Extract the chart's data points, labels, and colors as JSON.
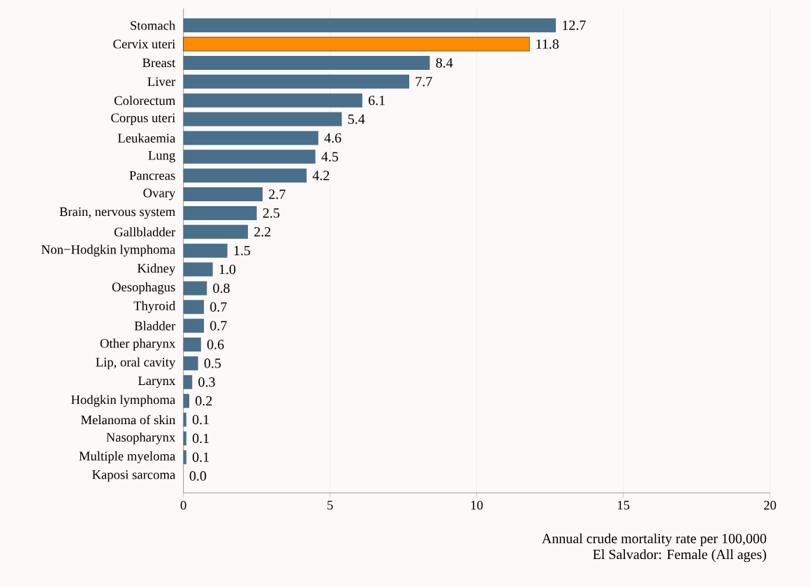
{
  "chart_data": {
    "type": "bar",
    "orientation": "horizontal",
    "categories": [
      "Stomach",
      "Cervix uteri",
      "Breast",
      "Liver",
      "Colorectum",
      "Corpus uteri",
      "Leukaemia",
      "Lung",
      "Pancreas",
      "Ovary",
      "Brain, nervous system",
      "Gallbladder",
      "Non−Hodgkin lymphoma",
      "Kidney",
      "Oesophagus",
      "Thyroid",
      "Bladder",
      "Other pharynx",
      "Lip, oral cavity",
      "Larynx",
      "Hodgkin lymphoma",
      "Melanoma of skin",
      "Nasopharynx",
      "Multiple myeloma",
      "Kaposi sarcoma"
    ],
    "values": [
      12.7,
      11.8,
      8.4,
      7.7,
      6.1,
      5.4,
      4.6,
      4.5,
      4.2,
      2.7,
      2.5,
      2.2,
      1.5,
      1.0,
      0.8,
      0.7,
      0.7,
      0.6,
      0.5,
      0.3,
      0.2,
      0.1,
      0.1,
      0.1,
      0.0
    ],
    "colors": [
      "#4a6f8a",
      "#ff8c00",
      "#4a6f8a",
      "#4a6f8a",
      "#4a6f8a",
      "#4a6f8a",
      "#4a6f8a",
      "#4a6f8a",
      "#4a6f8a",
      "#4a6f8a",
      "#4a6f8a",
      "#4a6f8a",
      "#4a6f8a",
      "#4a6f8a",
      "#4a6f8a",
      "#4a6f8a",
      "#4a6f8a",
      "#4a6f8a",
      "#4a6f8a",
      "#4a6f8a",
      "#4a6f8a",
      "#4a6f8a",
      "#4a6f8a",
      "#4a6f8a",
      "#4a6f8a"
    ],
    "value_labels": [
      "12.7",
      "11.8",
      "8.4",
      "7.7",
      "6.1",
      "5.4",
      "4.6",
      "4.5",
      "4.2",
      "2.7",
      "2.5",
      "2.2",
      "1.5",
      "1.0",
      "0.8",
      "0.7",
      "0.7",
      "0.6",
      "0.5",
      "0.3",
      "0.2",
      "0.1",
      "0.1",
      "0.1",
      "0.0"
    ],
    "xlim": [
      0,
      20
    ],
    "xticks": [
      0,
      5,
      10,
      15,
      20
    ],
    "grid": "x",
    "xlabel": "Annual crude mortality rate per 100,000",
    "annotations": [
      "El Salvador: Female (All ages)"
    ]
  }
}
